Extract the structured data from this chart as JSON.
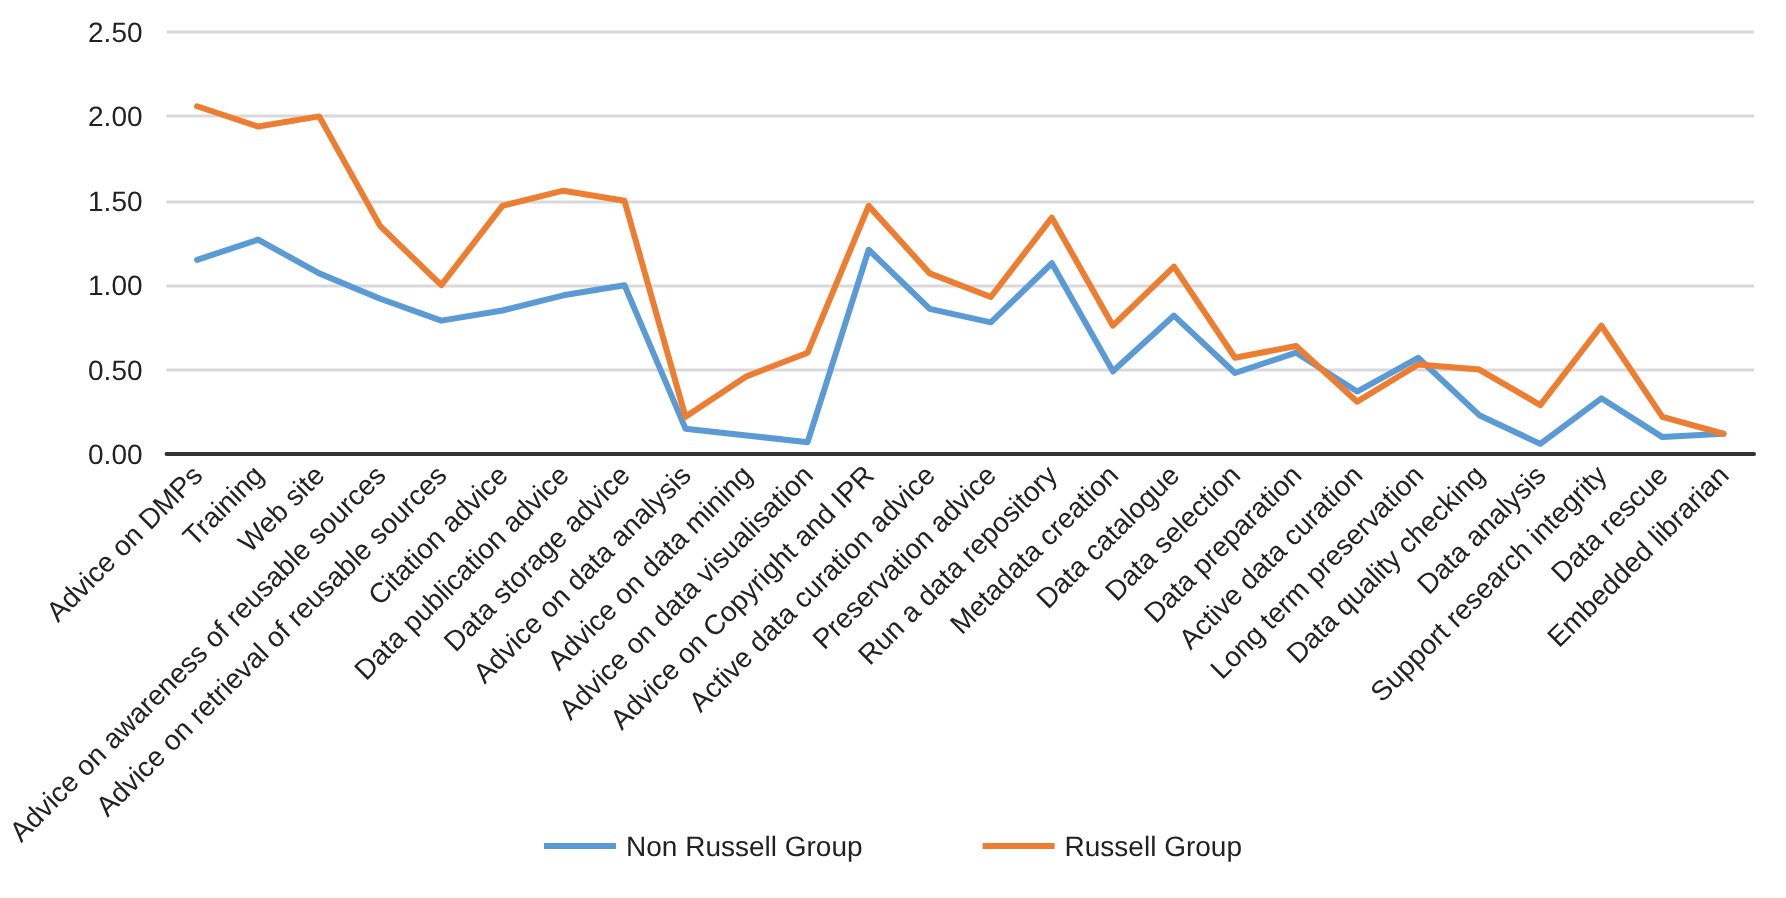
{
  "chart_data": {
    "type": "line",
    "categories": [
      "Advice on DMPs",
      "Training",
      "Web site",
      "Advice on awareness of reusable sources",
      "Advice on retrieval of reusable sources",
      "Citation advice",
      "Data publication advice",
      "Data storage advice",
      "Advice on data analysis",
      "Advice on data mining",
      "Advice on data visualisation",
      "Advice on Copyright and IPR",
      "Active data curation advice",
      "Preservation advice",
      "Run a data repository",
      "Metadata creation",
      "Data catalogue",
      "Data selection",
      "Data preparation",
      "Active data curation",
      "Long term preservation",
      "Data quality checking",
      "Data analysis",
      "Support research integrity",
      "Data rescue",
      "Embedded librarian"
    ],
    "series": [
      {
        "name": "Non Russell Group",
        "color": "#5b9bd5",
        "values": [
          1.15,
          1.27,
          1.07,
          0.92,
          0.79,
          0.85,
          0.94,
          1.0,
          0.15,
          0.11,
          0.07,
          1.21,
          0.86,
          0.78,
          1.13,
          0.49,
          0.82,
          0.48,
          0.6,
          0.37,
          0.57,
          0.23,
          0.06,
          0.33,
          0.1,
          0.12
        ]
      },
      {
        "name": "Russell Group",
        "color": "#ed7d31",
        "values": [
          2.06,
          1.94,
          2.0,
          1.35,
          1.0,
          1.47,
          1.56,
          1.5,
          0.22,
          0.46,
          0.6,
          1.47,
          1.07,
          0.93,
          1.4,
          0.76,
          1.11,
          0.57,
          0.64,
          0.31,
          0.53,
          0.5,
          0.29,
          0.76,
          0.22,
          0.12
        ]
      }
    ],
    "ylim": [
      0,
      2.5
    ],
    "yticks": [
      {
        "value": 0,
        "label": "0.00"
      },
      {
        "value": 0.5,
        "label": "0.50"
      },
      {
        "value": 1,
        "label": "1.00"
      },
      {
        "value": 1.5,
        "label": "1.50"
      },
      {
        "value": 2,
        "label": "2.00"
      },
      {
        "value": 2.5,
        "label": "2.50"
      }
    ],
    "grid": "y",
    "legend": "bottom",
    "marker": "none",
    "line_style": "solid"
  }
}
